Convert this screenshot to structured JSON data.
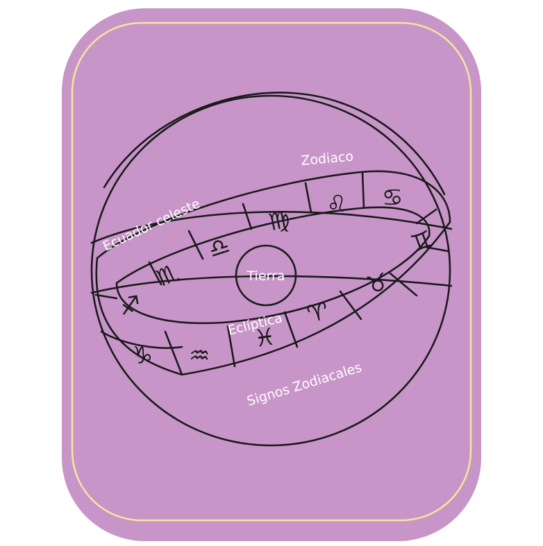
{
  "diagram": {
    "colors": {
      "card_fill": "#c895c9",
      "border_line": "#f3e7a0",
      "ink": "#1a1a1a",
      "label_text": "#ffffff"
    },
    "labels": {
      "zodiac": "Zodiaco",
      "celestial_equator": "Ecuador celeste",
      "earth": "Tierra",
      "ecliptic": "Eclíptica",
      "zodiac_signs": "Signos Zodiacales"
    },
    "signs": [
      {
        "name": "virgo-icon",
        "glyph": "♍"
      },
      {
        "name": "leo-icon",
        "glyph": "♌"
      },
      {
        "name": "cancer-icon",
        "glyph": "♋"
      },
      {
        "name": "libra-icon",
        "glyph": "♎"
      },
      {
        "name": "scorpio-icon",
        "glyph": "♏"
      },
      {
        "name": "gemini-icon",
        "glyph": "♊"
      },
      {
        "name": "sagittarius-icon",
        "glyph": "♐"
      },
      {
        "name": "taurus-icon",
        "glyph": "♉"
      },
      {
        "name": "aries-icon",
        "glyph": "♈"
      },
      {
        "name": "pisces-icon",
        "glyph": "♓"
      },
      {
        "name": "capricorn-icon",
        "glyph": "♑"
      },
      {
        "name": "aquarius-icon",
        "glyph": "♒"
      }
    ]
  }
}
